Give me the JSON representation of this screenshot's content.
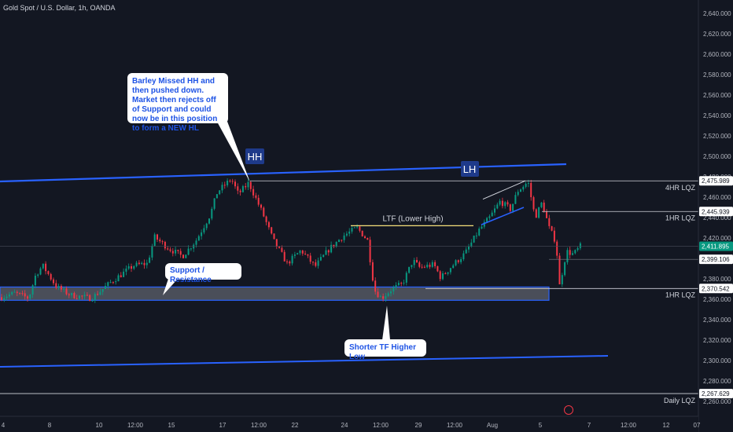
{
  "title": "Gold Spot / U.S. Dollar, 1h, OANDA",
  "chart_data": {
    "type": "candlestick",
    "symbol": "Gold Spot / U.S. Dollar",
    "interval": "1h",
    "source": "OANDA",
    "ylim": [
      2250,
      2650
    ],
    "y_ticks": [
      2640,
      2620,
      2600,
      2580,
      2560,
      2540,
      2520,
      2500,
      2480,
      2460,
      2440,
      2420,
      2400,
      2380,
      2360,
      2340,
      2320,
      2300,
      2280,
      2260
    ],
    "y_tick_labels": [
      "2,640.000",
      "2,620.000",
      "2,600.000",
      "2,580.000",
      "2,560.000",
      "2,540.000",
      "2,520.000",
      "2,500.000",
      "2,480.000",
      "2,460.000",
      "2,440.000",
      "2,420.000",
      "2,400.000",
      "2,380.000",
      "2,360.000",
      "2,340.000",
      "2,320.000",
      "2,300.000",
      "2,280.000",
      "2,260.000"
    ],
    "x_tick_labels": [
      "4",
      "8",
      "10",
      "12:00",
      "15",
      "17",
      "12:00",
      "22",
      "24",
      "12:00",
      "29",
      "12:00",
      "Aug",
      "5",
      "7",
      "12:00",
      "12",
      "07"
    ],
    "price_path": [
      [
        0,
        2362
      ],
      [
        0.02,
        2366
      ],
      [
        0.04,
        2361
      ],
      [
        0.05,
        2384
      ],
      [
        0.06,
        2393
      ],
      [
        0.08,
        2372
      ],
      [
        0.1,
        2364
      ],
      [
        0.13,
        2361
      ],
      [
        0.16,
        2378
      ],
      [
        0.19,
        2393
      ],
      [
        0.21,
        2395
      ],
      [
        0.22,
        2421
      ],
      [
        0.24,
        2410
      ],
      [
        0.26,
        2402
      ],
      [
        0.28,
        2418
      ],
      [
        0.3,
        2443
      ],
      [
        0.31,
        2465
      ],
      [
        0.33,
        2478
      ],
      [
        0.34,
        2463
      ],
      [
        0.355,
        2474
      ],
      [
        0.375,
        2444
      ],
      [
        0.39,
        2418
      ],
      [
        0.41,
        2395
      ],
      [
        0.43,
        2408
      ],
      [
        0.45,
        2392
      ],
      [
        0.47,
        2409
      ],
      [
        0.49,
        2422
      ],
      [
        0.51,
        2430
      ],
      [
        0.525,
        2418
      ],
      [
        0.535,
        2369
      ],
      [
        0.545,
        2361
      ],
      [
        0.56,
        2370
      ],
      [
        0.575,
        2375
      ],
      [
        0.59,
        2398
      ],
      [
        0.6,
        2391
      ],
      [
        0.62,
        2394
      ],
      [
        0.63,
        2381
      ],
      [
        0.645,
        2392
      ],
      [
        0.665,
        2405
      ],
      [
        0.685,
        2428
      ],
      [
        0.7,
        2440
      ],
      [
        0.715,
        2456
      ],
      [
        0.73,
        2448
      ],
      [
        0.74,
        2466
      ],
      [
        0.755,
        2475
      ],
      [
        0.765,
        2440
      ],
      [
        0.775,
        2455
      ],
      [
        0.785,
        2430
      ],
      [
        0.795,
        2416
      ],
      [
        0.8,
        2373
      ],
      [
        0.81,
        2407
      ],
      [
        0.82,
        2404
      ],
      [
        0.83,
        2412
      ]
    ],
    "price_labels": [
      {
        "name": "4HR LQZ",
        "value": 2475.989,
        "text": "2,475.989"
      },
      {
        "name": "1HR LQZ",
        "value": 2445.939,
        "text": "2,445.939"
      },
      {
        "name": "last-price",
        "value": 2411.895,
        "text": "2,411.895"
      },
      {
        "name": "",
        "value": 2399.106,
        "text": "2,399.106"
      },
      {
        "name": "1HR LQZ",
        "value": 2370.542,
        "text": "2,370.542"
      },
      {
        "name": "Daily LQZ",
        "value": 2267.629,
        "text": "2,267.629"
      }
    ],
    "level_labels": [
      "4HR LQZ",
      "1HR LQZ",
      "1HR LQZ",
      "Daily LQZ"
    ],
    "annotations": {
      "hh": "HH",
      "lh": "LH",
      "ltf_label": "LTF (Lower High)",
      "support_box": "Support / Resistance",
      "callout_top": "Barley Missed HH and then pushed down. Market then rejects off of Support and could now be in this position to form a NEW HL",
      "callout_bottom": "Shorter TF Higher Low"
    },
    "colors": {
      "background": "#131722",
      "up": "#089981",
      "down": "#f23645",
      "trendline": "#2962ff",
      "zone_fill": "#787b86",
      "ltf_line": "#f7e17b",
      "axis_text": "#b2b5be",
      "callout_text": "#1e53e5"
    }
  }
}
